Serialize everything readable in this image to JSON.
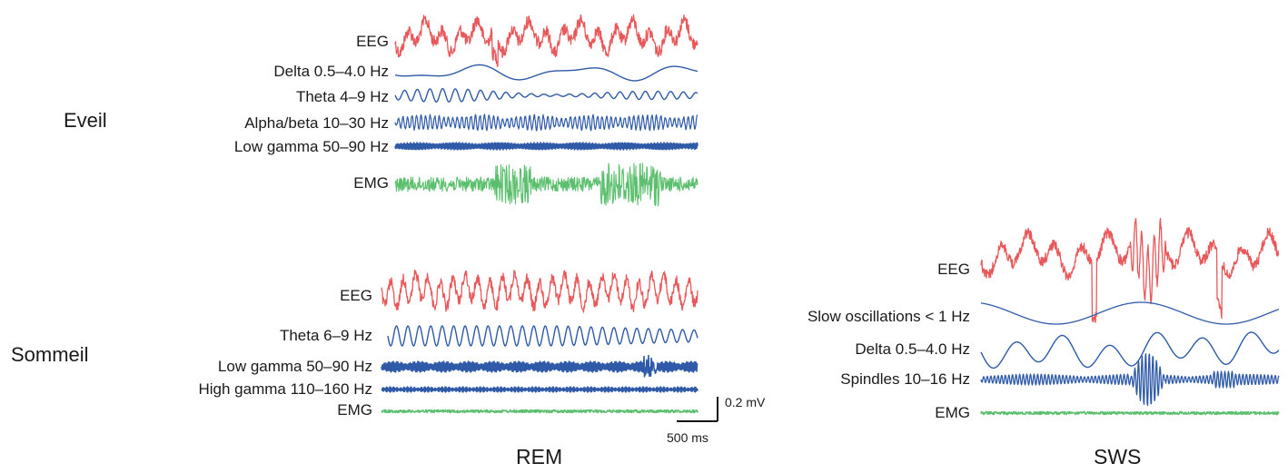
{
  "state_labels": {
    "wake": "Eveil",
    "sleep": "Sommeil"
  },
  "panel_labels": {
    "rem": "REM",
    "sws": "SWS"
  },
  "wake_traces": [
    {
      "label": "EEG",
      "color": "#e8585a"
    },
    {
      "label": "Delta 0.5–4.0 Hz",
      "color": "#2f5aa8"
    },
    {
      "label": "Theta 4–9 Hz",
      "color": "#2f5aa8"
    },
    {
      "label": "Alpha/beta 10–30 Hz",
      "color": "#2f5aa8"
    },
    {
      "label": "Low gamma 50–90 Hz",
      "color": "#2f5aa8"
    },
    {
      "label": "EMG",
      "color": "#5bbf6e"
    }
  ],
  "rem_traces": [
    {
      "label": "EEG",
      "color": "#e8585a"
    },
    {
      "label": "Theta 6–9 Hz",
      "color": "#2f5aa8"
    },
    {
      "label": "Low gamma 50–90 Hz",
      "color": "#2f5aa8"
    },
    {
      "label": "High gamma 110–160 Hz",
      "color": "#2f5aa8"
    },
    {
      "label": "EMG",
      "color": "#5bbf6e"
    }
  ],
  "sws_traces": [
    {
      "label": "EEG",
      "color": "#e8585a"
    },
    {
      "label": "Slow oscillations < 1 Hz",
      "color": "#2f5aa8"
    },
    {
      "label": "Delta 0.5–4.0 Hz",
      "color": "#2f5aa8"
    },
    {
      "label": "Spindles 10–16 Hz",
      "color": "#2f5aa8"
    },
    {
      "label": "EMG",
      "color": "#5bbf6e"
    }
  ],
  "scale_bar": {
    "amplitude": "0.2 mV",
    "time": "500 ms"
  }
}
